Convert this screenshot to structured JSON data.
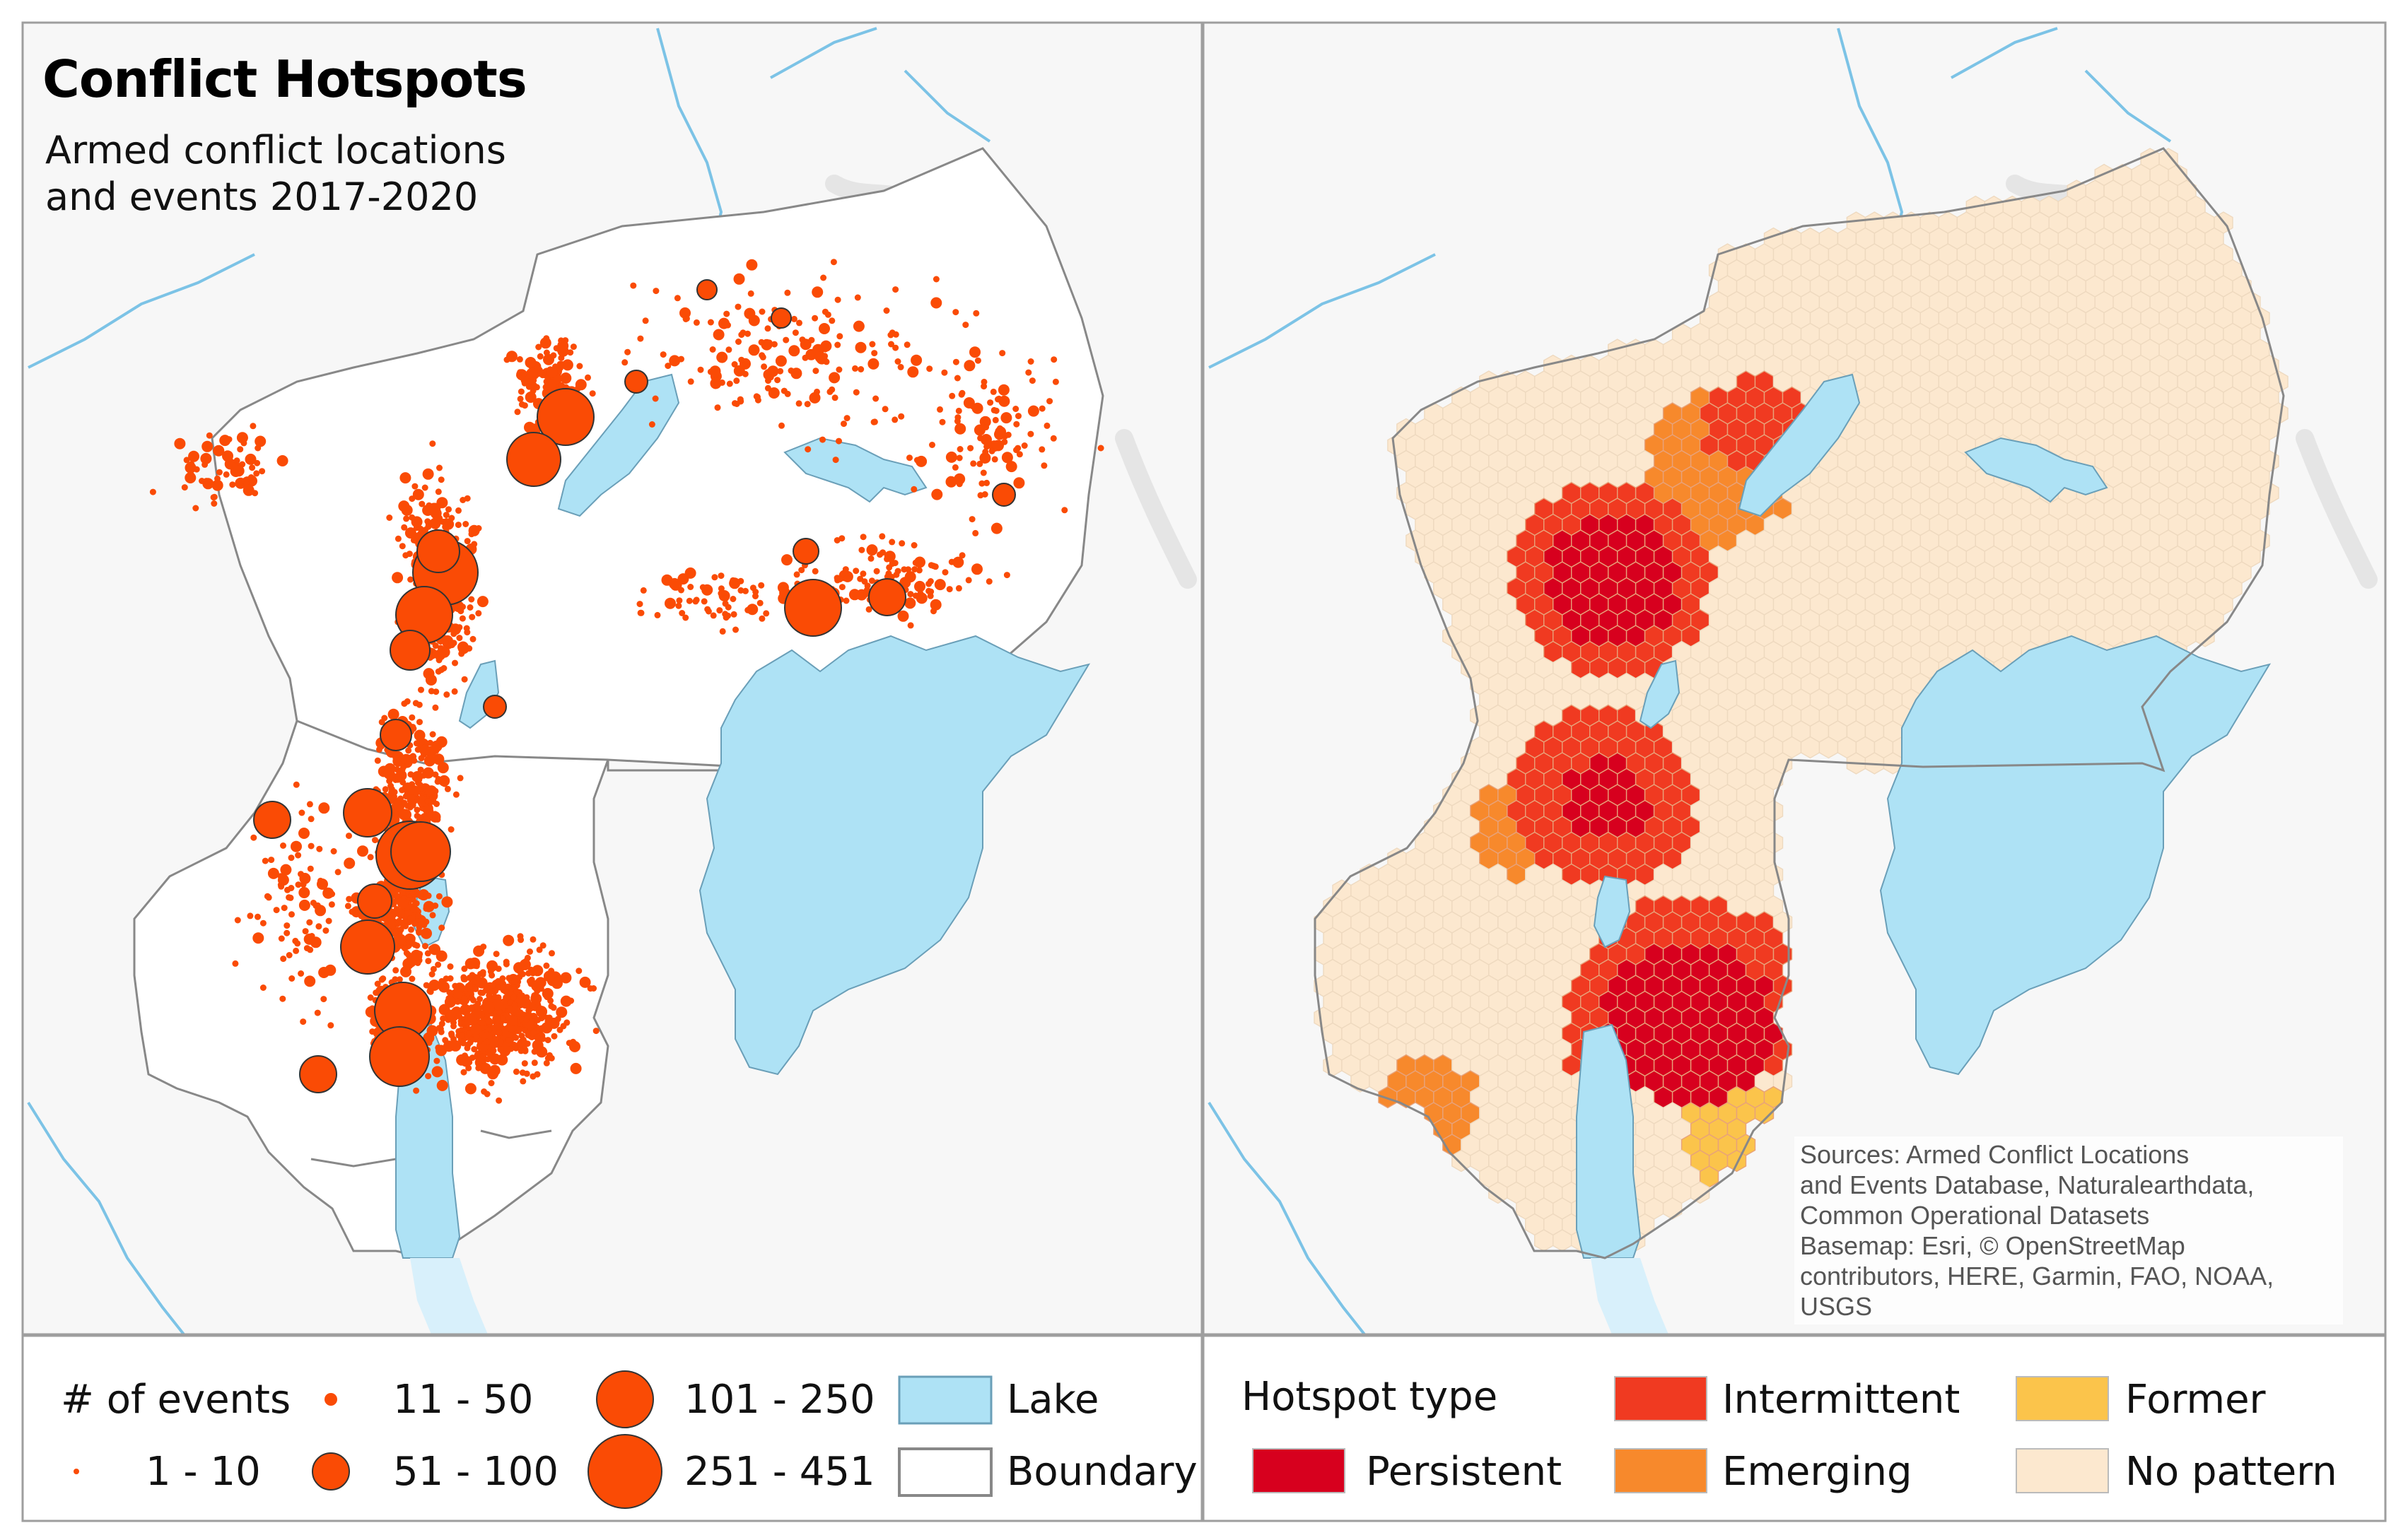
{
  "map": {
    "title": "Conflict Hotspots",
    "subtitle": "Armed conflict locations and events 2017-2020",
    "sources": "Sources: Armed Conflict Locations\nand Events Database, Naturalearthdata,\nCommon Operational Datasets\nBasemap: Esri, © OpenStreetMap\ncontributors, HERE, Garmin, FAO, NOAA,\nUSGS"
  },
  "legend_events": {
    "title": "# of events",
    "classes": [
      "1 - 10",
      "11 - 50",
      "51 - 100",
      "101 - 250",
      "251 - 451"
    ],
    "lake_label": "Lake",
    "boundary_label": "Boundary"
  },
  "legend_hotspots": {
    "title": "Hotspot type",
    "items": [
      {
        "label": "Persistent",
        "color": "#d7001e"
      },
      {
        "label": "Intermittent",
        "color": "#f03a21"
      },
      {
        "label": "Emerging",
        "color": "#f7892c"
      },
      {
        "label": "Former",
        "color": "#fbc44b"
      },
      {
        "label": "No pattern",
        "color": "#fce8cf"
      }
    ]
  },
  "colors": {
    "event_point": "#fa4b05",
    "lake": "#aee2f5",
    "river": "#7cc3e6",
    "boundary": "#888888",
    "panel_border": "#9e9e9e"
  }
}
